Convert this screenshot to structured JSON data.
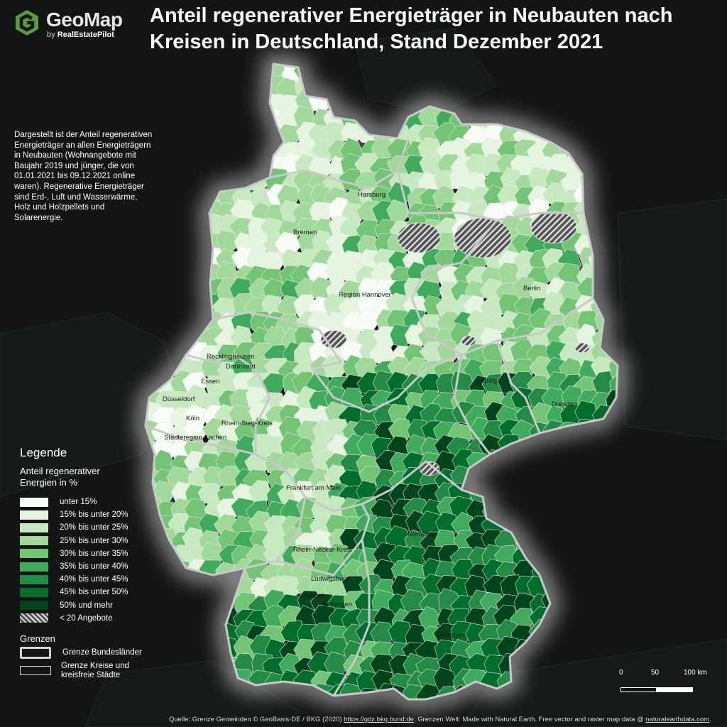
{
  "brand": {
    "name": "GeoMap",
    "by": "by",
    "by_name": "RealEstatePilot"
  },
  "title": "Anteil regenerativer Energieträger in Neubauten nach Kreisen in Deutschland, Stand Dezember 2021",
  "description": "Dargestellt ist der Anteil regenerativen Energieträger an allen Energieträgern in Neubauten (Wohnangebote mit Baujahr 2019 und jünger, die von 01.01.2021 bis 09.12.2021 online waren). Regenerative Energieträger sind Erd-, Luft und Wasserwärme, Holz und Holzpellets und Solarenergie.",
  "legend": {
    "title": "Legende",
    "subtitle": "Anteil regenerativer Energien in %",
    "items": [
      {
        "label": "unter 15%",
        "color": "#f7fcf5"
      },
      {
        "label": "15% bis unter 20%",
        "color": "#e5f5e0"
      },
      {
        "label": "20% bis unter 25%",
        "color": "#c7e9c0"
      },
      {
        "label": "25% bis unter 30%",
        "color": "#a1d99b"
      },
      {
        "label": "30% bis unter 35%",
        "color": "#74c476"
      },
      {
        "label": "35% bis unter 40%",
        "color": "#41ab5d"
      },
      {
        "label": "40% bis unter 45%",
        "color": "#238b45"
      },
      {
        "label": "45% bis unter 50%",
        "color": "#006d2c"
      },
      {
        "label": "50% und mehr",
        "color": "#00441b"
      },
      {
        "label": "< 20 Angebote",
        "color": "hatched"
      }
    ],
    "borders_title": "Grenzen",
    "border_items": [
      {
        "label": "Grenze Bundesländer"
      },
      {
        "label": "Grenze Kreise und kreisfreie Städte"
      }
    ]
  },
  "cities": [
    "Hamburg",
    "Bremen",
    "Berlin",
    "Region Hannover",
    "Recklinghausen",
    "Dortmund",
    "Essen",
    "Düsseldorf",
    "Köln",
    "Rhein-Sieg-Kreis",
    "Städteregion Aachen",
    "Leipzig",
    "Dresden",
    "Frankfurt am Main",
    "Rhein-Neckar-Kreis",
    "Nürnberg",
    "Ludwigsburg",
    "Stuttgart",
    "Esslingen",
    "München"
  ],
  "scale": {
    "labels": [
      "0",
      "50",
      "100 km"
    ]
  },
  "source": {
    "prefix": "Quelle: Grenze Gemeinden © GeoBasis-DE / BKG (2020) ",
    "link1": "https://gdz.bkg.bund.de",
    "middle": ". Grenzen Welt: Made with Natural Earth. Free vector and raster map data @ ",
    "link2": "naturalearthdata.com",
    "suffix": "."
  }
}
